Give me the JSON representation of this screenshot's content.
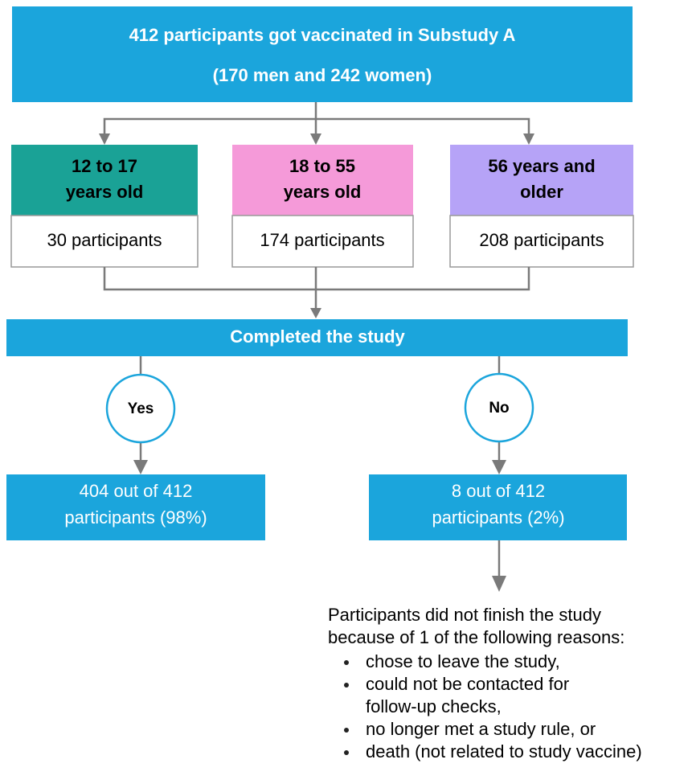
{
  "header": {
    "lines": [
      "412 participants got vaccinated in Substudy A",
      "(170 men and 242 women)"
    ]
  },
  "groups": [
    {
      "label": [
        "12 to 17",
        "years old"
      ],
      "count": "30 participants"
    },
    {
      "label": [
        "18 to 55",
        "years old"
      ],
      "count": "174 participants"
    },
    {
      "label": [
        "56 years and",
        "older"
      ],
      "count": "208 participants"
    }
  ],
  "completed": "Completed the study",
  "branches": {
    "yes": {
      "label": "Yes",
      "result": [
        "404 out of 412",
        "participants (98%)"
      ]
    },
    "no": {
      "label": "No",
      "result": [
        "8 out of 412",
        "participants (2%)"
      ]
    }
  },
  "reasons": {
    "intro": [
      "Participants did not finish the study",
      "because of 1 of the following reasons:"
    ],
    "items": [
      [
        "chose to leave the study,"
      ],
      [
        "could not be contacted for",
        "follow-up checks,"
      ],
      [
        "no longer met a study rule, or"
      ],
      [
        "death (not related to study vaccine)"
      ]
    ]
  }
}
